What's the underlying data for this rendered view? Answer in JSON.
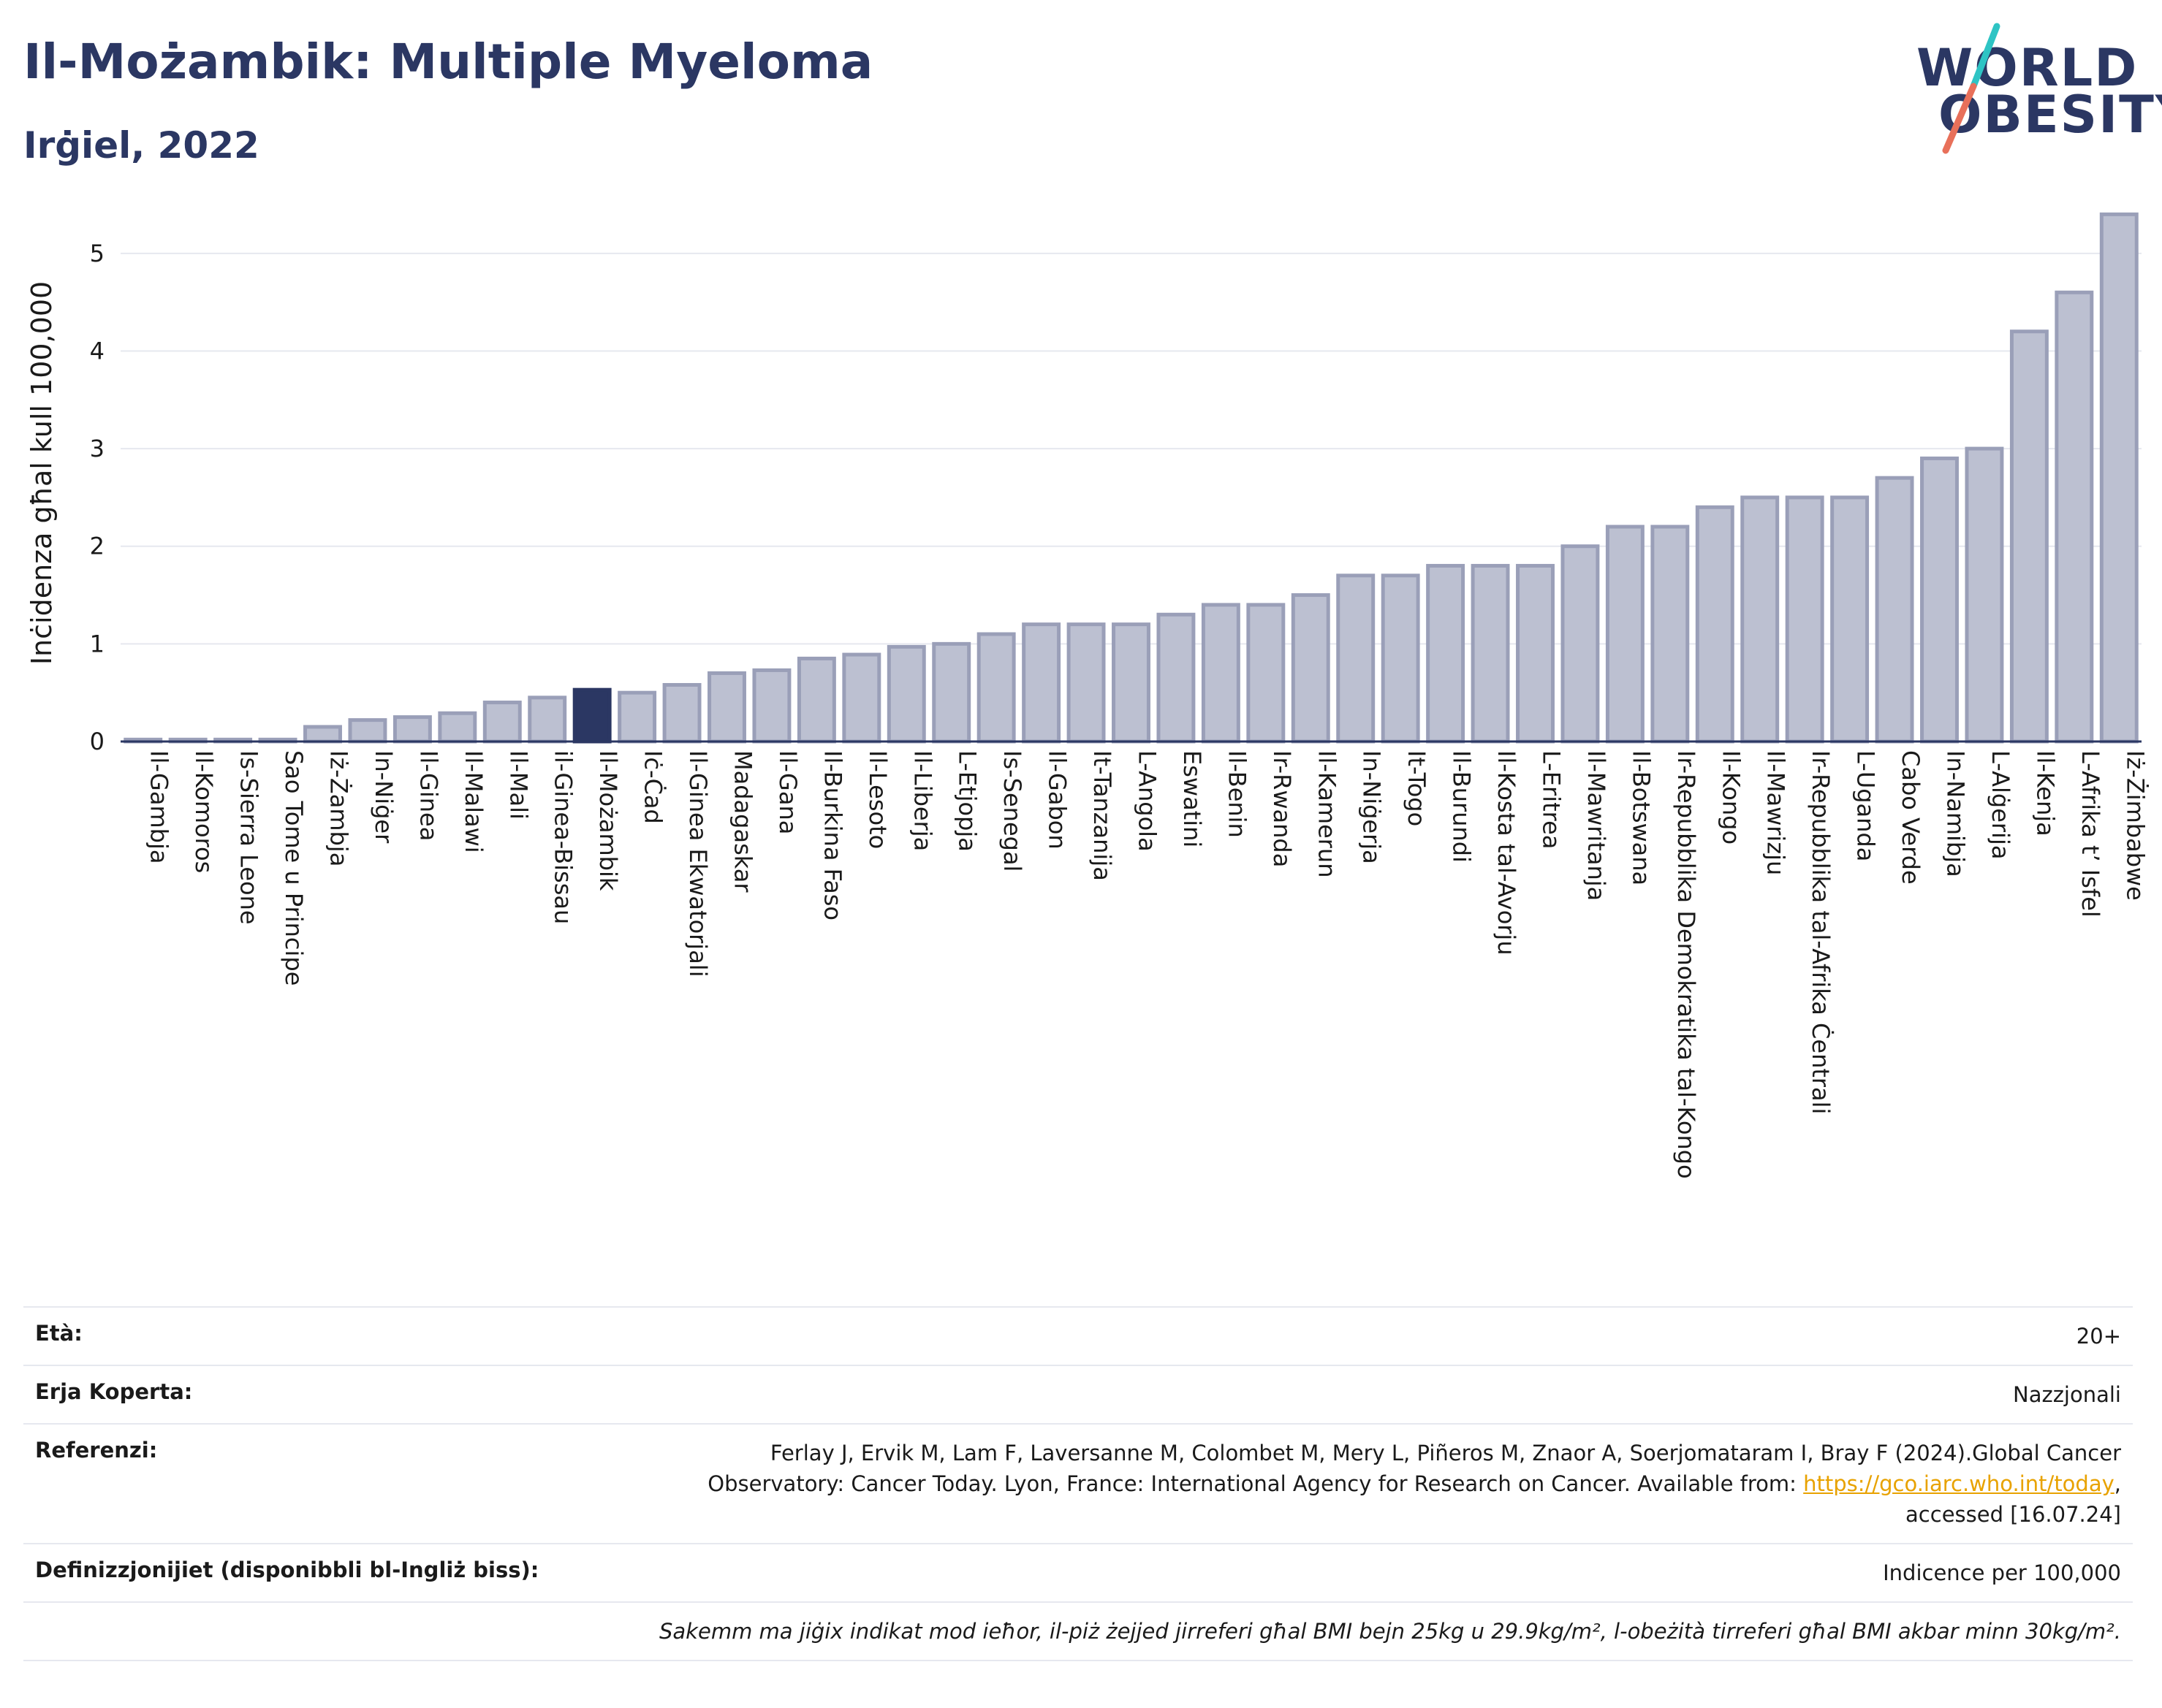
{
  "header": {
    "title": "Il-Możambik: Multiple Myeloma",
    "subtitle": "Irġiel, 2022",
    "logo_line1": "WORLD",
    "logo_line2": "OBESITY"
  },
  "colors": {
    "bar": "#bcc0d1",
    "bar_border": "#9a9fb8",
    "highlight": "#2b3763",
    "grid": "#e6e8ef",
    "logo_slash_top": "#2ec4c4",
    "logo_slash_bottom": "#e8705a"
  },
  "chart_data": {
    "type": "bar",
    "ylabel": "Inċidenza għal kull 100,000",
    "ylim": [
      0,
      5.5
    ],
    "yticks": [
      0,
      1,
      2,
      3,
      4,
      5
    ],
    "highlight": "Il-Możambik",
    "grid": true,
    "categories": [
      "Il-Gambja",
      "Il-Komoros",
      "Is-Sierra Leone",
      "Sao Tome u Principe",
      "Iż-Żambja",
      "In-Niġer",
      "Il-Ginea",
      "Il-Malawi",
      "Il-Mali",
      "il-Ginea-Bissau",
      "Il-Możambik",
      "Iċ-Ċad",
      "Il-Ginea Ekwatorjali",
      "Madagaskar",
      "Il-Gana",
      "Il-Burkina Faso",
      "Il-Lesoto",
      "Il-Liberja",
      "L-Etjopja",
      "Is-Senegal",
      "Il-Gabon",
      "It-Tanzanija",
      "L-Angola",
      "Eswatini",
      "Il-Benin",
      "Ir-Rwanda",
      "Il-Kamerun",
      "In-Niġerja",
      "It-Togo",
      "Il-Burundi",
      "Il-Kosta tal-Avorju",
      "L-Eritrea",
      "Il-Mawritanja",
      "Il-Botswana",
      "Ir-Repubblika Demokratika tal-Kongo",
      "Il-Kongo",
      "Il-Mawrizju",
      "Ir-Repubblika tal-Afrika Ċentrali",
      "L-Uganda",
      "Cabo Verde",
      "In-Namibja",
      "L-Alġerija",
      "Il-Kenja",
      "L-Afrika t’ Isfel",
      "Iż-Żimbabwe"
    ],
    "values": [
      0.02,
      0.02,
      0.02,
      0.02,
      0.15,
      0.22,
      0.25,
      0.29,
      0.4,
      0.45,
      0.53,
      0.5,
      0.58,
      0.7,
      0.73,
      0.85,
      0.89,
      0.97,
      1.0,
      1.1,
      1.2,
      1.2,
      1.2,
      1.3,
      1.4,
      1.4,
      1.5,
      1.7,
      1.7,
      1.8,
      1.8,
      1.8,
      2.0,
      2.2,
      2.2,
      2.4,
      2.5,
      2.5,
      2.5,
      2.7,
      2.9,
      3.0,
      4.2,
      4.6,
      5.4
    ]
  },
  "info": {
    "age_label": "Età:",
    "age_value": "20+",
    "area_label": "Erja Koperta:",
    "area_value": "Nazzjonali",
    "ref_label": "Referenzi:",
    "ref_text_1": "Ferlay J, Ervik M, Lam F, Laversanne M, Colombet M, Mery L, Piñeros M, Znaor A, Soerjomataram I, Bray F (2024).Global Cancer",
    "ref_text_2": "Observatory: Cancer Today. Lyon, France: International Agency for Research on Cancer. Available from: ",
    "ref_link": "https://gco.iarc.who.int/today",
    "ref_text_3": ",",
    "ref_text_4": "accessed [16.07.24]",
    "def_label": "Definizzjonijiet (disponibbli bl-Ingliż biss):",
    "def_value": "Indicence per 100,000",
    "note": "Sakemm ma jiġix indikat mod ieħor, il-piż żejjed jirreferi għal BMI bejn 25kg u 29.9kg/m², l-obeżità tirreferi għal BMI akbar minn 30kg/m²."
  }
}
